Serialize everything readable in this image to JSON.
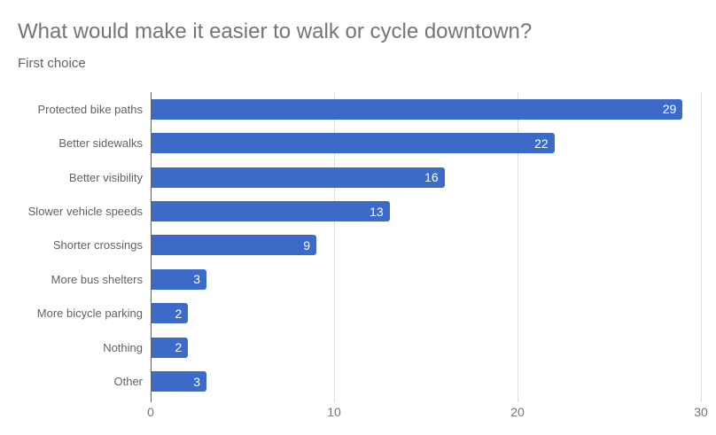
{
  "chart_data": {
    "type": "bar",
    "orientation": "horizontal",
    "title": "What would make it easier to walk or cycle downtown?",
    "subtitle": "First choice",
    "categories": [
      "Protected bike paths",
      "Better sidewalks",
      "Better visibility",
      "Slower vehicle speeds",
      "Shorter crossings",
      "More bus shelters",
      "More bicycle parking",
      "Nothing",
      "Other"
    ],
    "values": [
      29,
      22,
      16,
      13,
      9,
      3,
      2,
      2,
      3
    ],
    "value_labels": [
      "29",
      "22",
      "16",
      "13",
      "9",
      "3",
      "2",
      "2",
      "3"
    ],
    "xlabel": "",
    "ylabel": "",
    "xlim": [
      0,
      30
    ],
    "x_ticks": [
      0,
      10,
      20,
      30
    ],
    "x_tick_labels": [
      "0",
      "10",
      "20",
      "30"
    ],
    "grid": true,
    "legend": "none",
    "colors": {
      "bar": "#3b6ac8",
      "bar_value_text": "#ffffff",
      "title_text": "#757575",
      "subtitle_text": "#616161",
      "category_text": "#616161",
      "tick_text": "#757575",
      "gridline": "#dcdcdc",
      "axis_line": "#616161",
      "background": "#ffffff"
    }
  }
}
